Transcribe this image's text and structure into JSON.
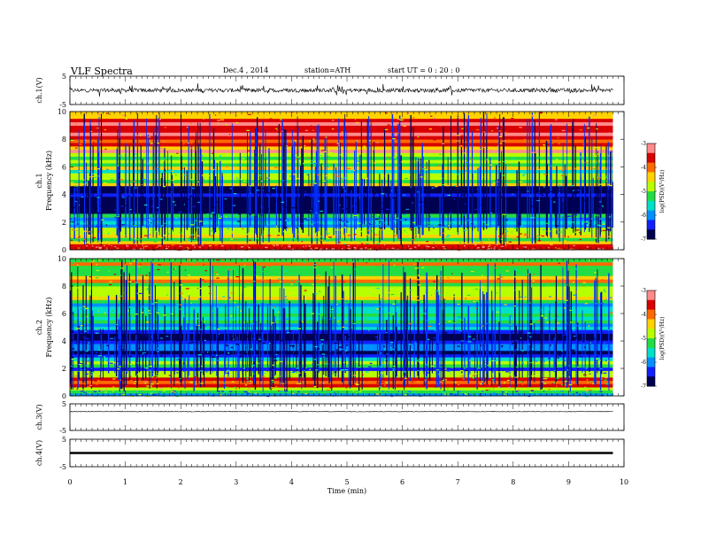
{
  "header": {
    "title": "VLF  Spectra",
    "date": "Dec.4  , 2014",
    "station": "station=ATH",
    "start": "start  UT  =   0 : 20 : 0"
  },
  "chart_data": [
    {
      "type": "line",
      "panel": "ch1-waveform",
      "ylabel": "ch.1(V)",
      "ylim": [
        -5,
        5
      ],
      "yticks": [
        "5",
        "-5"
      ],
      "xlim": [
        0,
        10
      ],
      "data_end_min": 9.8,
      "baseline": 0,
      "amplitude": 0.7,
      "series_color": "#000000"
    },
    {
      "type": "heatmap",
      "panel": "ch1-spectrogram",
      "ylabel_top": "ch.1",
      "ylabel": "Frequency  (kHz)",
      "ylim": [
        0,
        10
      ],
      "yticks": [
        "0",
        "2",
        "4",
        "6",
        "8",
        "10"
      ],
      "xlim": [
        0,
        10
      ],
      "data_end_min": 9.8,
      "colorbar": {
        "label": "log(PSD)(V²/Hz)",
        "range": [
          -7,
          -3
        ],
        "ticks": [
          "-3",
          "-4",
          "-5",
          "-6",
          "-7"
        ],
        "colors": [
          "#ff8a8a",
          "#d80000",
          "#ff6a00",
          "#ffd200",
          "#b8ff00",
          "#22dd44",
          "#00e0c8",
          "#0090ff",
          "#1020ff",
          "#000050"
        ]
      },
      "bands_kHz": [
        {
          "from": 7.0,
          "to": 10.0,
          "level": -3.8
        },
        {
          "from": 4.6,
          "to": 7.0,
          "level": -4.9
        },
        {
          "from": 2.6,
          "to": 4.6,
          "level": -6.7
        },
        {
          "from": 1.6,
          "to": 2.6,
          "level": -5.8
        },
        {
          "from": 0.4,
          "to": 1.6,
          "level": -4.6
        },
        {
          "from": 0.0,
          "to": 0.4,
          "level": -3.2
        }
      ]
    },
    {
      "type": "heatmap",
      "panel": "ch2-spectrogram",
      "ylabel_top": "ch.2",
      "ylabel": "Frequency  (kHz)",
      "ylim": [
        0,
        10
      ],
      "yticks": [
        "0",
        "2",
        "4",
        "6",
        "8",
        "10"
      ],
      "xlim": [
        0,
        10
      ],
      "data_end_min": 9.8,
      "colorbar": {
        "label": "log(PSD)(V²/Hz)",
        "range": [
          -7,
          -3
        ],
        "ticks": [
          "-3",
          "-4",
          "-5",
          "-6",
          "-7"
        ],
        "colors": [
          "#ff8a8a",
          "#d80000",
          "#ff6a00",
          "#ffd200",
          "#b8ff00",
          "#22dd44",
          "#00e0c8",
          "#0090ff",
          "#1020ff",
          "#000050"
        ]
      },
      "bands_kHz": [
        {
          "from": 7.5,
          "to": 10.0,
          "level": -4.6
        },
        {
          "from": 4.8,
          "to": 7.5,
          "level": -5.2
        },
        {
          "from": 2.8,
          "to": 4.8,
          "level": -6.5
        },
        {
          "from": 1.6,
          "to": 2.8,
          "level": -5.6
        },
        {
          "from": 0.4,
          "to": 1.6,
          "level": -4.3
        },
        {
          "from": 0.0,
          "to": 0.4,
          "level": -5.5
        }
      ]
    },
    {
      "type": "line",
      "panel": "ch3-waveform",
      "ylabel": "ch.3(V)",
      "ylim": [
        -5,
        5
      ],
      "yticks": [
        "5",
        "-5"
      ],
      "xlim": [
        0,
        10
      ],
      "data_end_min": 9.8,
      "baseline": 2.1,
      "amplitude": 0.12,
      "series_color": "#000000"
    },
    {
      "type": "line",
      "panel": "ch4-waveform",
      "ylabel": "ch.4(V)",
      "ylim": [
        -5,
        5
      ],
      "yticks": [
        "5",
        "-5"
      ],
      "xlim": [
        0,
        10
      ],
      "data_end_min": 9.8,
      "baseline": 0,
      "amplitude": 0.3,
      "series_color": "#000000"
    }
  ],
  "xaxis": {
    "label": "Time  (min)",
    "ticks": [
      "0",
      "1",
      "2",
      "3",
      "4",
      "5",
      "6",
      "7",
      "8",
      "9",
      "10"
    ]
  }
}
